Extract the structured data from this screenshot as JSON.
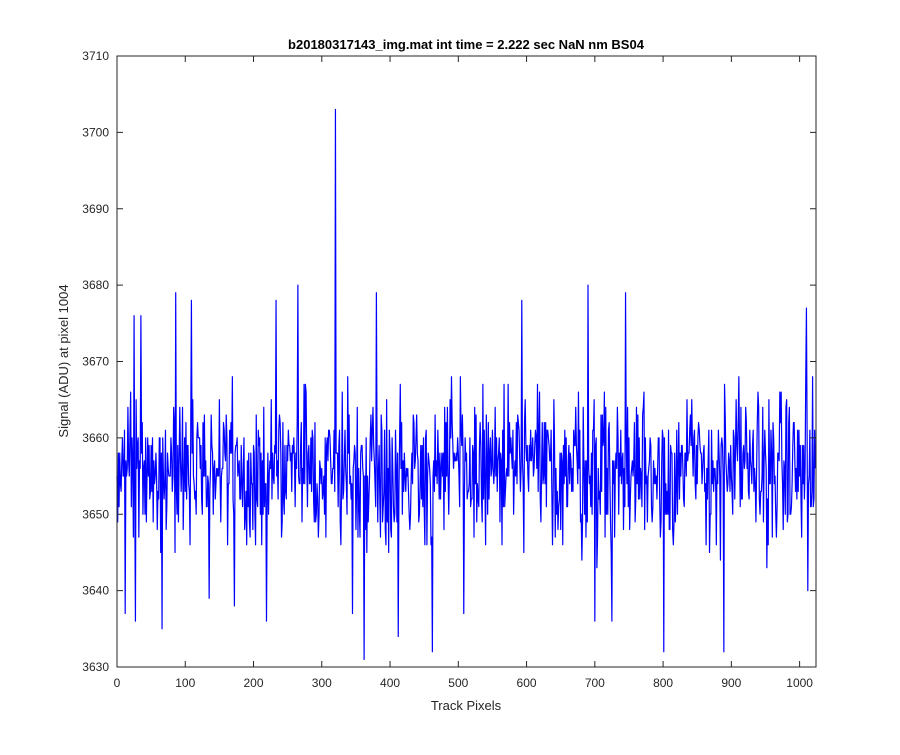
{
  "chart_data": {
    "type": "line",
    "title": "b20180317143_img.mat int time = 2.222 sec  NaN nm BS04",
    "xlabel": "Track Pixels",
    "ylabel": "Signal (ADU) at pixel 1004",
    "xlim": [
      0,
      1024
    ],
    "ylim": [
      3630,
      3710
    ],
    "xticks": [
      0,
      100,
      200,
      300,
      400,
      500,
      600,
      700,
      800,
      900,
      1000
    ],
    "yticks": [
      3630,
      3640,
      3650,
      3660,
      3670,
      3680,
      3690,
      3700,
      3710
    ],
    "grid": false,
    "legend": "none",
    "line_color": "#0000ff",
    "n_points": 1024,
    "noise_mean": 3656,
    "noise_range_typical": [
      3641,
      3671
    ],
    "key_points": [
      {
        "x": 1,
        "y": 3649
      },
      {
        "x": 12,
        "y": 3637
      },
      {
        "x": 25,
        "y": 3676
      },
      {
        "x": 27,
        "y": 3636
      },
      {
        "x": 35,
        "y": 3676
      },
      {
        "x": 66,
        "y": 3635
      },
      {
        "x": 86,
        "y": 3679
      },
      {
        "x": 109,
        "y": 3678
      },
      {
        "x": 135,
        "y": 3639
      },
      {
        "x": 172,
        "y": 3638
      },
      {
        "x": 219,
        "y": 3636
      },
      {
        "x": 233,
        "y": 3678
      },
      {
        "x": 265,
        "y": 3680
      },
      {
        "x": 320,
        "y": 3703
      },
      {
        "x": 345,
        "y": 3637
      },
      {
        "x": 362,
        "y": 3631
      },
      {
        "x": 380,
        "y": 3679
      },
      {
        "x": 412,
        "y": 3634
      },
      {
        "x": 462,
        "y": 3632
      },
      {
        "x": 508,
        "y": 3637
      },
      {
        "x": 593,
        "y": 3678
      },
      {
        "x": 690,
        "y": 3680
      },
      {
        "x": 700,
        "y": 3636
      },
      {
        "x": 725,
        "y": 3636
      },
      {
        "x": 745,
        "y": 3679
      },
      {
        "x": 801,
        "y": 3632
      },
      {
        "x": 889,
        "y": 3632
      },
      {
        "x": 1010,
        "y": 3677
      },
      {
        "x": 1012,
        "y": 3640
      },
      {
        "x": 1023,
        "y": 3656
      }
    ]
  }
}
